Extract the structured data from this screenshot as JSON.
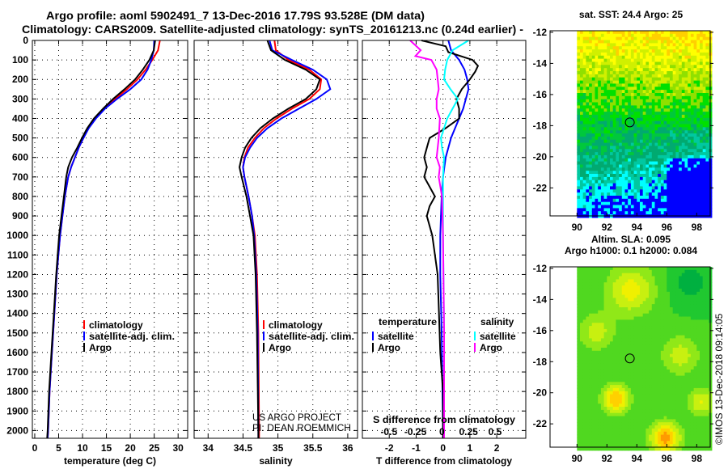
{
  "title_line1": "Argo profile: aoml 5902491_7 13-Dec-2016 17.79S 93.528E (DM data)",
  "title_line2": "Climatology: CARS2009. Satellite-adjusted climatology: synTS_20161213.nc (0.24d earlier) -",
  "credit": "US ARGO PROJECT",
  "pi": "PI: DEAN ROEMMICH",
  "imos": "©IMOS 13-Dec-2018 09:14:05",
  "depth_ticks": [
    0,
    100,
    200,
    300,
    400,
    500,
    600,
    700,
    800,
    900,
    1000,
    1100,
    1200,
    1300,
    1400,
    1500,
    1600,
    1700,
    1800,
    1900,
    2000
  ],
  "colors": {
    "climatology": "#ff0000",
    "satellite": "#0000ff",
    "argo": "#000000",
    "sal_sat": "#00ffff",
    "sal_argo": "#ff00ff"
  },
  "chart_data": [
    {
      "type": "line",
      "name": "temperature",
      "xlabel": "temperature (deg C)",
      "xlim": [
        -0.5,
        32
      ],
      "ylim": [
        2040,
        0
      ],
      "xticks": [
        0,
        5,
        10,
        15,
        20,
        25,
        30
      ],
      "legend": [
        "climatology",
        "satellite-adj. clim.",
        "Argo"
      ],
      "series": [
        {
          "name": "climatology",
          "color": "#ff0000",
          "depth": [
            0,
            50,
            100,
            150,
            200,
            250,
            300,
            350,
            400,
            450,
            500,
            550,
            600,
            650,
            700,
            800,
            900,
            1000,
            1200,
            1400,
            1600,
            1800,
            2000,
            2040
          ],
          "values": [
            26.2,
            25.8,
            24.6,
            23.2,
            21.5,
            19.3,
            16.8,
            14.4,
            12.6,
            11.2,
            10.2,
            9.2,
            8.4,
            7.6,
            7.0,
            6.3,
            5.8,
            5.3,
            4.6,
            4.1,
            3.6,
            3.1,
            2.8,
            2.7
          ]
        },
        {
          "name": "satellite-adj. clim.",
          "color": "#0000ff",
          "depth": [
            0,
            50,
            100,
            150,
            200,
            250,
            300,
            350,
            400,
            450,
            500,
            550,
            600,
            650,
            700,
            800,
            900,
            1000,
            1200,
            1400,
            1600,
            1800,
            2000,
            2040
          ],
          "values": [
            25.0,
            24.9,
            24.4,
            23.6,
            22.3,
            20.0,
            17.2,
            14.7,
            12.8,
            11.3,
            10.2,
            9.2,
            8.4,
            7.6,
            7.0,
            6.3,
            5.8,
            5.3,
            4.6,
            4.1,
            3.6,
            3.1,
            2.8,
            2.7
          ]
        },
        {
          "name": "Argo",
          "color": "#000000",
          "depth": [
            0,
            50,
            100,
            150,
            200,
            250,
            300,
            350,
            400,
            450,
            500,
            550,
            600,
            650,
            700,
            800,
            900,
            1000,
            1200,
            1400,
            1600,
            1800,
            2000,
            2040
          ],
          "values": [
            25.2,
            24.9,
            24.0,
            22.6,
            21.0,
            18.8,
            16.4,
            14.3,
            12.4,
            11.0,
            9.9,
            8.9,
            7.8,
            7.0,
            6.6,
            6.1,
            5.6,
            5.1,
            4.5,
            4.0,
            3.5,
            3.0,
            2.7,
            2.6
          ]
        }
      ]
    },
    {
      "type": "line",
      "name": "salinity",
      "xlabel": "salinity",
      "xlim": [
        33.8,
        36.14
      ],
      "ylim": [
        2040,
        0
      ],
      "xticks": [
        34,
        34.5,
        35,
        35.5,
        36
      ],
      "legend": [
        "climatology",
        "satellite-adj. clim.",
        "Argo"
      ],
      "series": [
        {
          "name": "climatology",
          "color": "#ff0000",
          "depth": [
            0,
            50,
            100,
            150,
            200,
            250,
            300,
            350,
            400,
            450,
            500,
            550,
            600,
            650,
            700,
            800,
            900,
            1000,
            1200,
            1500,
            2000,
            2040
          ],
          "values": [
            34.95,
            34.97,
            35.15,
            35.45,
            35.62,
            35.6,
            35.45,
            35.2,
            34.98,
            34.8,
            34.67,
            34.57,
            34.52,
            34.5,
            34.52,
            34.58,
            34.63,
            34.67,
            34.7,
            34.72,
            34.73,
            34.73
          ]
        },
        {
          "name": "satellite-adj. clim.",
          "color": "#0000ff",
          "depth": [
            0,
            50,
            100,
            150,
            200,
            250,
            300,
            350,
            400,
            450,
            500,
            550,
            600,
            650,
            700,
            800,
            900,
            1000,
            1200,
            1500,
            2000,
            2040
          ],
          "values": [
            34.88,
            34.92,
            35.2,
            35.5,
            35.7,
            35.75,
            35.55,
            35.3,
            35.05,
            34.85,
            34.7,
            34.6,
            34.53,
            34.5,
            34.52,
            34.58,
            34.63,
            34.66,
            34.69,
            34.71,
            34.72,
            34.72
          ]
        },
        {
          "name": "Argo",
          "color": "#000000",
          "depth": [
            0,
            50,
            100,
            150,
            200,
            250,
            300,
            350,
            400,
            450,
            500,
            550,
            600,
            650,
            700,
            800,
            900,
            1000,
            1200,
            1500,
            2000,
            2040
          ],
          "values": [
            34.85,
            34.9,
            35.1,
            35.4,
            35.6,
            35.55,
            35.4,
            35.15,
            34.93,
            34.75,
            34.62,
            34.53,
            34.48,
            34.45,
            34.48,
            34.55,
            34.6,
            34.65,
            34.68,
            34.7,
            34.72,
            34.72
          ]
        }
      ]
    },
    {
      "type": "line",
      "name": "difference",
      "xlabel": "T difference from climatology",
      "xlabel2": "S difference from climatology",
      "xlim": [
        -3,
        3.08
      ],
      "s_xlim": [
        -0.75,
        0.79
      ],
      "ylim": [
        2040,
        0
      ],
      "xticks": [
        -2,
        -1,
        0,
        1,
        2
      ],
      "s_xticks": [
        -0.5,
        -0.25,
        0,
        0.25,
        0.5
      ],
      "legend_t_title": "temperature",
      "legend_s_title": "salinity",
      "legend_t": [
        "satellite",
        "Argo"
      ],
      "legend_s": [
        "satellite",
        "Argo"
      ],
      "series": [
        {
          "name": "T satellite",
          "axis": "T",
          "color": "#0000ff",
          "depth": [
            0,
            50,
            100,
            150,
            200,
            250,
            300,
            350,
            400,
            450,
            500,
            600,
            700,
            800,
            1000,
            1200,
            1500,
            2000,
            2040
          ],
          "values": [
            0.2,
            0.3,
            0.6,
            0.8,
            0.9,
            0.95,
            0.85,
            0.75,
            0.6,
            0.45,
            0.3,
            0.1,
            0.0,
            -0.05,
            -0.1,
            -0.1,
            -0.05,
            0.0,
            0.0
          ]
        },
        {
          "name": "T Argo",
          "axis": "T",
          "color": "#000000",
          "depth": [
            0,
            30,
            60,
            100,
            130,
            160,
            200,
            250,
            300,
            350,
            400,
            450,
            500,
            550,
            600,
            650,
            700,
            750,
            800,
            850,
            900,
            1000,
            1100,
            1200,
            1400,
            1600,
            1800,
            2000,
            2040
          ],
          "values": [
            -0.8,
            0.1,
            0.2,
            1.1,
            1.3,
            1.2,
            1.0,
            0.7,
            0.5,
            0.6,
            0.6,
            0.1,
            -0.5,
            -0.6,
            -0.7,
            -0.6,
            -0.7,
            -0.5,
            -0.3,
            -0.5,
            -0.6,
            -0.4,
            -0.3,
            -0.2,
            -0.15,
            -0.1,
            0.0,
            0.0,
            0.0
          ]
        },
        {
          "name": "S satellite",
          "axis": "S",
          "color": "#00ffff",
          "depth": [
            0,
            50,
            100,
            150,
            200,
            250,
            300,
            350,
            400,
            450,
            500,
            550,
            600,
            700,
            800,
            1000,
            1500,
            2000,
            2040
          ],
          "values": [
            0.25,
            0.1,
            0.05,
            0.03,
            0.02,
            0.08,
            0.15,
            0.1,
            0.05,
            0.02,
            -0.01,
            0.0,
            0.02,
            0.01,
            0.01,
            0.01,
            0.02,
            0.02,
            0.02
          ]
        },
        {
          "name": "S Argo",
          "axis": "S",
          "color": "#ff00ff",
          "depth": [
            0,
            50,
            80,
            100,
            150,
            200,
            250,
            300,
            350,
            400,
            500,
            600,
            650,
            700,
            800,
            1000,
            1500,
            2000,
            2040
          ],
          "values": [
            -0.3,
            -0.2,
            -0.25,
            -0.1,
            -0.05,
            -0.04,
            -0.03,
            -0.05,
            -0.05,
            -0.02,
            -0.03,
            -0.05,
            -0.02,
            -0.03,
            0.0,
            0.01,
            0.02,
            0.02,
            0.02
          ]
        }
      ]
    },
    {
      "type": "heatmap",
      "name": "sst-map",
      "title": "sat. SST: 24.4 Argo: 25",
      "xlim": [
        88.2,
        98.9
      ],
      "ylim": [
        -23.8,
        -11.9
      ],
      "xticks": [
        90,
        92,
        94,
        96,
        98
      ],
      "yticks": [
        -12,
        -14,
        -16,
        -18,
        -20,
        -22
      ],
      "float_position": [
        93.528,
        -17.79
      ],
      "palette": [
        "#0000ff",
        "#00ffff",
        "#00c8a0",
        "#00aa70",
        "#00c83c",
        "#00e000",
        "#90e000",
        "#d0f000",
        "#ffff00",
        "#ffd000"
      ]
    },
    {
      "type": "heatmap",
      "name": "sla-map",
      "title": "Altim. SLA: 0.095",
      "subtitle": "Argo h1000: 0.1 h2000: 0.084",
      "xlim": [
        88.2,
        98.9
      ],
      "ylim": [
        -23.5,
        -11.9
      ],
      "xticks": [
        90,
        92,
        94,
        96,
        98
      ],
      "yticks": [
        -12,
        -14,
        -16,
        -18,
        -20,
        -22
      ],
      "float_position": [
        93.528,
        -17.79
      ],
      "palette": [
        "#00b040",
        "#20c830",
        "#50d820",
        "#90e818",
        "#c8f010",
        "#f0f000",
        "#ffd000",
        "#ff9a00"
      ]
    }
  ]
}
